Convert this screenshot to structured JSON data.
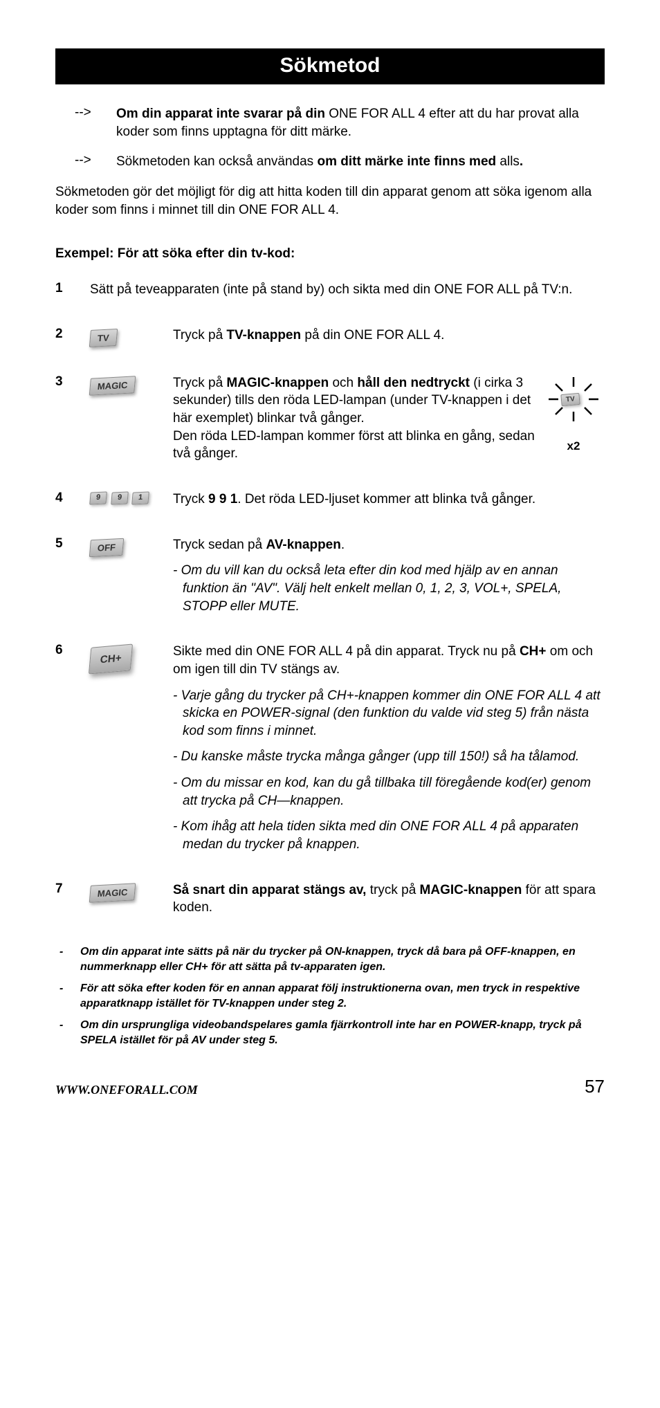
{
  "title": "Sökmetod",
  "intro": [
    {
      "arrow": "-->",
      "html": "<b>Om din apparat inte svarar på din</b> ONE FOR ALL 4 efter att du har provat alla koder som finns upptagna för ditt märke."
    },
    {
      "arrow": "-->",
      "html": "Sökmetoden kan också användas <b>om ditt märke inte finns med</b> alls<b>.</b>"
    }
  ],
  "paragraph": "Sökmetoden gör det möjligt för dig att hitta koden till din apparat genom att söka igenom alla koder som finns i minnet till din ONE FOR ALL 4.",
  "example_heading": "Exempel: För att söka efter din tv-kod:",
  "steps": {
    "s1": {
      "num": "1",
      "html": "Sätt på teveapparaten (inte på stand by) och sikta med din ONE FOR ALL på TV:n."
    },
    "s2": {
      "num": "2",
      "icon_label": "TV",
      "html": "Tryck på <b>TV-knappen</b> på din ONE FOR ALL 4."
    },
    "s3": {
      "num": "3",
      "icon_label": "MAGIC",
      "html": "Tryck på <b>MAGIC-knappen</b> och <b>håll den nedtryckt</b> (i cirka 3 sekunder) tills den röda LED-lampan (under TV-knappen i det här exemplet) blinkar två gånger.<br>Den röda LED-lampan kommer först att blinka en gång, sedan två gånger.",
      "blink_label": "TV",
      "x2": "x2"
    },
    "s4": {
      "num": "4",
      "keys": [
        "9",
        "9",
        "1"
      ],
      "html": "Tryck <b>9 9 1</b>. Det röda LED-ljuset kommer att blinka två gånger."
    },
    "s5": {
      "num": "5",
      "icon_label": "OFF",
      "html": "Tryck sedan på <b>AV-knappen</b>.",
      "note": "- Om du vill kan du också leta efter din kod med hjälp av en annan funktion än \"AV\". Välj helt enkelt mellan 0, 1, 2, 3, VOL+, SPELA, STOPP eller MUTE."
    },
    "s6": {
      "num": "6",
      "icon_label": "CH+",
      "html": "Sikte med din ONE FOR ALL 4 på din apparat. Tryck nu på <b>CH+</b> om och om igen till din TV stängs av.",
      "notes": [
        "- Varje gång du trycker på CH+-knappen kommer din ONE FOR ALL 4 att skicka en POWER-signal (den funktion du valde vid steg 5) från nästa kod som finns i minnet.",
        "- Du kanske måste trycka många gånger (upp till 150!) så ha tålamod.",
        "- Om du missar en kod, kan du gå tillbaka till föregående kod(er) genom att trycka på CH—knappen.",
        "- Kom ihåg att hela tiden sikta med din ONE FOR ALL 4 på apparaten medan du trycker på knappen."
      ]
    },
    "s7": {
      "num": "7",
      "icon_label": "MAGIC",
      "html": "<b>Så snart din apparat stängs av,</b> tryck på <b>MAGIC-knappen</b> för att spara koden."
    }
  },
  "footer_notes": [
    "Om din apparat inte sätts på när du trycker på ON-knappen, tryck då bara på OFF-knappen, en nummerknapp eller CH+ för att sätta på tv-apparaten igen.",
    "För att söka efter koden för en annan apparat följ instruktionerna ovan, men tryck in respektive apparatknapp istället för TV-knappen under steg 2.",
    "Om din ursprungliga videobandspelares gamla fjärrkontroll inte har en POWER-knapp, tryck på SPELA istället för på AV under steg 5."
  ],
  "footer_dash": "-",
  "url": "WWW.ONEFORALL.COM",
  "page_num": "57"
}
